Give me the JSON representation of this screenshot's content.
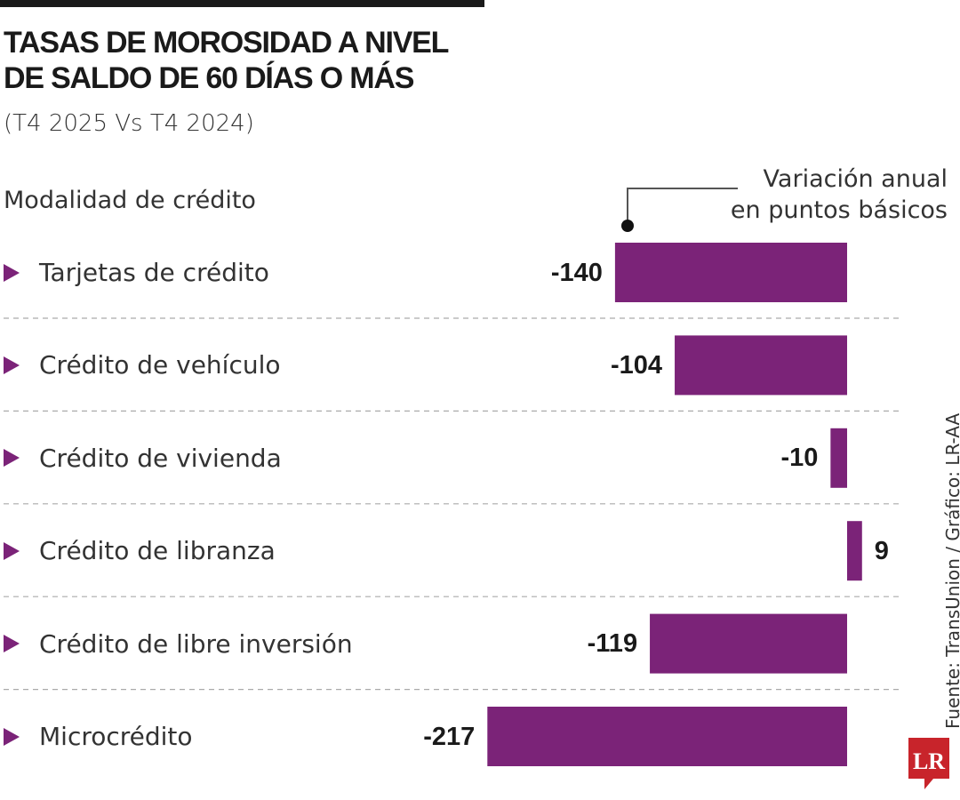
{
  "title_lines": [
    "TASAS DE MOROSIDAD A NIVEL",
    "DE SALDO DE 60 DÍAS O MÁS"
  ],
  "subtitle": "(T4 2025 Vs T4 2024)",
  "category_header": "Modalidad de crédito",
  "annotation_lines": [
    "Variación anual",
    "en puntos básicos"
  ],
  "source": "Fuente: TransUnion / Gráfico: LR-AA",
  "logo_text": "LR",
  "colors": {
    "bar": "#7b2378",
    "logo": "#c8242b",
    "text": "#1a1a1a"
  },
  "chart_data": {
    "type": "bar",
    "orientation": "horizontal",
    "title": "TASAS DE MOROSIDAD A NIVEL DE SALDO DE 60 DÍAS O MÁS",
    "subtitle": "(T4 2025 Vs T4 2024)",
    "ylabel": "Modalidad de crédito",
    "xlabel": "Variación anual en puntos básicos",
    "categories": [
      "Tarjetas de crédito",
      "Crédito de vehículo",
      "Crédito de vivienda",
      "Crédito de libranza",
      "Crédito de libre inversión",
      "Microcrédito"
    ],
    "values": [
      -140,
      -104,
      -10,
      9,
      -119,
      -217
    ],
    "value_labels": [
      "-140",
      "-104",
      "-10",
      "9",
      "-119",
      "-217"
    ],
    "xlim": [
      -217,
      9
    ],
    "grid": false
  }
}
